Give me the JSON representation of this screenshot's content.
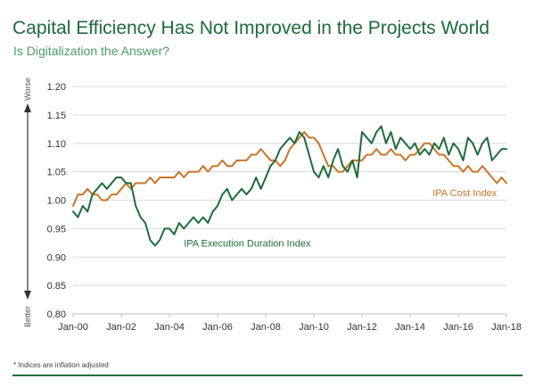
{
  "header": {
    "title": "Capital Efficiency Has Not Improved in the Projects World",
    "subtitle": "Is Digitalization the Answer?"
  },
  "footnote": "* Indices are inflation adjusted",
  "colors": {
    "title": "#1e6b3c",
    "execution": "#1e6b3c",
    "cost": "#c8752a",
    "grid": "#d9d9d9"
  },
  "chart_data": {
    "type": "line",
    "title": "Capital Efficiency Has Not Improved in the Projects World",
    "subtitle": "Is Digitalization the Answer?",
    "xlabel": "",
    "ylabel": "",
    "y_axis_top_word": "Worse",
    "y_axis_bottom_word": "Better",
    "xlim": [
      2000,
      2018
    ],
    "ylim": [
      0.8,
      1.2
    ],
    "grid": true,
    "x_tick_labels": [
      "Jan-00",
      "Jan-02",
      "Jan-04",
      "Jan-06",
      "Jan-08",
      "Jan-10",
      "Jan-12",
      "Jan-14",
      "Jan-16",
      "Jan-18"
    ],
    "x_tick_values": [
      2000,
      2002,
      2004,
      2006,
      2008,
      2010,
      2012,
      2014,
      2016,
      2018
    ],
    "y_tick_labels": [
      "0.80",
      "0.85",
      "0.90",
      "0.95",
      "1.00",
      "1.05",
      "1.10",
      "1.15",
      "1.20"
    ],
    "y_tick_values": [
      0.8,
      0.85,
      0.9,
      0.95,
      1.0,
      1.05,
      1.1,
      1.15,
      1.2
    ],
    "series": [
      {
        "name": "IPA Execution Duration Index",
        "color": "#1e6b3c",
        "x": [
          2000,
          2000.2,
          2000.4,
          2000.6,
          2000.8,
          2001.0,
          2001.2,
          2001.4,
          2001.6,
          2001.8,
          2002.0,
          2002.2,
          2002.4,
          2002.6,
          2002.8,
          2003.0,
          2003.2,
          2003.4,
          2003.6,
          2003.8,
          2004.0,
          2004.2,
          2004.4,
          2004.6,
          2004.8,
          2005.0,
          2005.2,
          2005.4,
          2005.6,
          2005.8,
          2006.0,
          2006.2,
          2006.4,
          2006.6,
          2006.8,
          2007.0,
          2007.2,
          2007.4,
          2007.6,
          2007.8,
          2008.0,
          2008.2,
          2008.4,
          2008.6,
          2008.8,
          2009.0,
          2009.2,
          2009.4,
          2009.6,
          2009.8,
          2010.0,
          2010.2,
          2010.4,
          2010.6,
          2010.8,
          2011.0,
          2011.2,
          2011.4,
          2011.6,
          2011.8,
          2012.0,
          2012.2,
          2012.4,
          2012.6,
          2012.8,
          2013.0,
          2013.2,
          2013.4,
          2013.6,
          2013.8,
          2014.0,
          2014.2,
          2014.4,
          2014.6,
          2014.8,
          2015.0,
          2015.2,
          2015.4,
          2015.6,
          2015.8,
          2016.0,
          2016.2,
          2016.4,
          2016.6,
          2016.8,
          2017.0,
          2017.2,
          2017.4,
          2017.6,
          2017.8,
          2018.0
        ],
        "values": [
          0.98,
          0.97,
          0.99,
          0.98,
          1.01,
          1.02,
          1.03,
          1.02,
          1.03,
          1.04,
          1.04,
          1.03,
          1.03,
          0.99,
          0.97,
          0.96,
          0.93,
          0.92,
          0.93,
          0.95,
          0.95,
          0.94,
          0.96,
          0.95,
          0.96,
          0.97,
          0.96,
          0.97,
          0.96,
          0.98,
          0.99,
          1.01,
          1.02,
          1.0,
          1.01,
          1.02,
          1.01,
          1.02,
          1.04,
          1.02,
          1.04,
          1.06,
          1.07,
          1.09,
          1.1,
          1.11,
          1.1,
          1.12,
          1.11,
          1.08,
          1.05,
          1.04,
          1.06,
          1.04,
          1.07,
          1.09,
          1.06,
          1.05,
          1.07,
          1.04,
          1.12,
          1.11,
          1.1,
          1.12,
          1.13,
          1.1,
          1.12,
          1.09,
          1.11,
          1.1,
          1.09,
          1.1,
          1.08,
          1.09,
          1.08,
          1.1,
          1.09,
          1.11,
          1.08,
          1.1,
          1.09,
          1.07,
          1.11,
          1.1,
          1.08,
          1.1,
          1.11,
          1.07,
          1.08,
          1.09,
          1.09
        ]
      },
      {
        "name": "IPA Cost Index",
        "color": "#c8752a",
        "x": [
          2000,
          2000.2,
          2000.4,
          2000.6,
          2000.8,
          2001.0,
          2001.2,
          2001.4,
          2001.6,
          2001.8,
          2002.0,
          2002.2,
          2002.4,
          2002.6,
          2002.8,
          2003.0,
          2003.2,
          2003.4,
          2003.6,
          2003.8,
          2004.0,
          2004.2,
          2004.4,
          2004.6,
          2004.8,
          2005.0,
          2005.2,
          2005.4,
          2005.6,
          2005.8,
          2006.0,
          2006.2,
          2006.4,
          2006.6,
          2006.8,
          2007.0,
          2007.2,
          2007.4,
          2007.6,
          2007.8,
          2008.0,
          2008.2,
          2008.4,
          2008.6,
          2008.8,
          2009.0,
          2009.2,
          2009.4,
          2009.6,
          2009.8,
          2010.0,
          2010.2,
          2010.4,
          2010.6,
          2010.8,
          2011.0,
          2011.2,
          2011.4,
          2011.6,
          2011.8,
          2012.0,
          2012.2,
          2012.4,
          2012.6,
          2012.8,
          2013.0,
          2013.2,
          2013.4,
          2013.6,
          2013.8,
          2014.0,
          2014.2,
          2014.4,
          2014.6,
          2014.8,
          2015.0,
          2015.2,
          2015.4,
          2015.6,
          2015.8,
          2016.0,
          2016.2,
          2016.4,
          2016.6,
          2016.8,
          2017.0,
          2017.2,
          2017.4,
          2017.6,
          2017.8,
          2018.0
        ],
        "values": [
          0.99,
          1.01,
          1.01,
          1.02,
          1.01,
          1.01,
          1.0,
          1.0,
          1.01,
          1.01,
          1.02,
          1.03,
          1.02,
          1.03,
          1.03,
          1.03,
          1.04,
          1.03,
          1.04,
          1.04,
          1.04,
          1.04,
          1.05,
          1.04,
          1.05,
          1.05,
          1.05,
          1.06,
          1.05,
          1.06,
          1.06,
          1.07,
          1.06,
          1.06,
          1.07,
          1.07,
          1.07,
          1.08,
          1.08,
          1.09,
          1.08,
          1.07,
          1.07,
          1.06,
          1.07,
          1.09,
          1.1,
          1.11,
          1.12,
          1.11,
          1.11,
          1.1,
          1.08,
          1.06,
          1.06,
          1.05,
          1.05,
          1.06,
          1.07,
          1.07,
          1.07,
          1.08,
          1.08,
          1.09,
          1.08,
          1.08,
          1.09,
          1.08,
          1.08,
          1.07,
          1.08,
          1.08,
          1.09,
          1.1,
          1.1,
          1.09,
          1.08,
          1.08,
          1.07,
          1.06,
          1.06,
          1.05,
          1.06,
          1.05,
          1.05,
          1.06,
          1.05,
          1.04,
          1.03,
          1.04,
          1.03
        ]
      }
    ],
    "annotations": [
      "IPA Execution Duration Index",
      "IPA Cost Index"
    ]
  }
}
